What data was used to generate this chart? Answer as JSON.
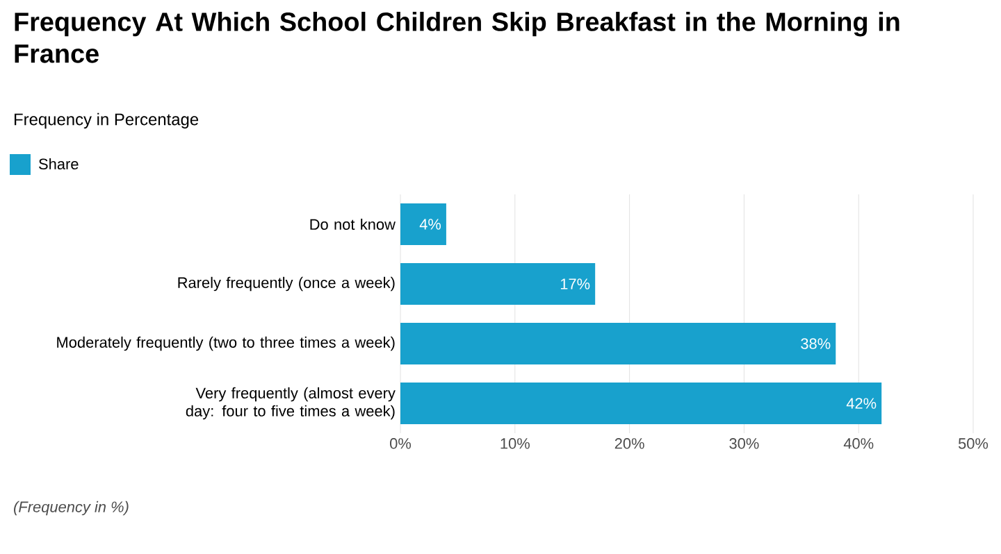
{
  "chart_data": {
    "type": "bar",
    "orientation": "horizontal",
    "title": "Frequency At Which School Children Skip Breakfast in the Morning in France",
    "subtitle": "Frequency in Percentage",
    "categories": [
      "Do not know",
      "Rarely frequently (once a week)",
      "Moderately frequently (two to three times a week)",
      "Very frequently (almost every day: four to five times a week)"
    ],
    "series": [
      {
        "name": "Share",
        "color": "#18a1cd",
        "values": [
          4,
          17,
          38,
          42
        ],
        "value_labels": [
          "4%",
          "17%",
          "38%",
          "42%"
        ]
      }
    ],
    "xlim": [
      0,
      50
    ],
    "xticks": [
      {
        "value": 0,
        "label": "0%"
      },
      {
        "value": 10,
        "label": "10%"
      },
      {
        "value": 20,
        "label": "20%"
      },
      {
        "value": 30,
        "label": "30%"
      },
      {
        "value": 40,
        "label": "40%"
      },
      {
        "value": 50,
        "label": "50%"
      }
    ],
    "grid": "x",
    "legend": "top left",
    "annotations": [
      "(Frequency in %)"
    ]
  }
}
